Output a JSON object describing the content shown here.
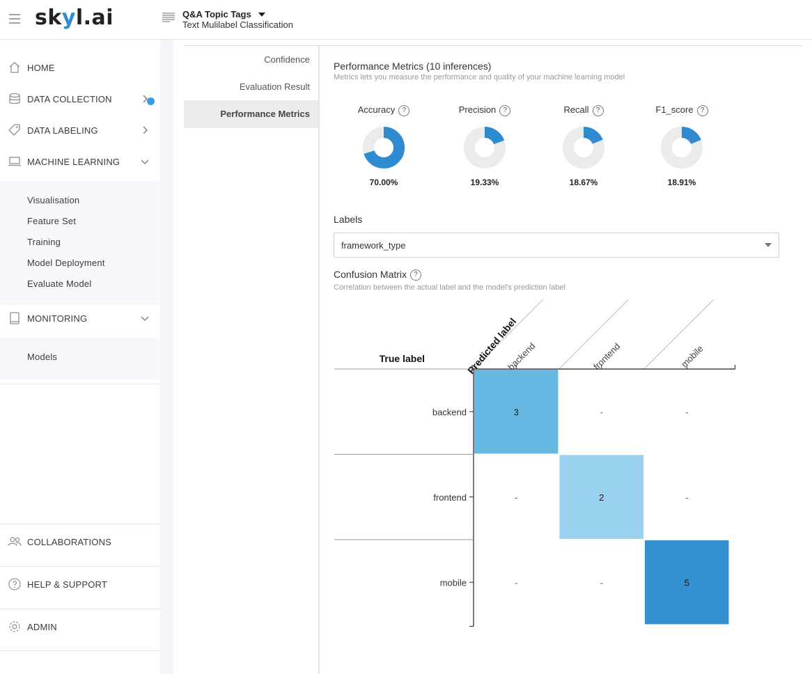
{
  "app": {
    "logo": {
      "pre": "sk",
      "y": "y",
      "post": "l.ai"
    },
    "project_title": "Q&A Topic Tags",
    "project_subtitle": "Text Mulilabel Classification"
  },
  "sidebar": {
    "items": [
      {
        "label": "HOME",
        "icon": "home-icon"
      },
      {
        "label": "DATA COLLECTION",
        "icon": "database-icon"
      },
      {
        "label": "DATA LABELING",
        "icon": "tag-icon"
      },
      {
        "label": "MACHINE LEARNING",
        "icon": "laptop-icon"
      },
      {
        "label": "MONITORING",
        "icon": "tablet-icon"
      }
    ],
    "ml_subitems": [
      "Visualisation",
      "Feature Set",
      "Training",
      "Model Deployment",
      "Evaluate Model"
    ],
    "monitoring_subitems": [
      "Models"
    ],
    "bottom_items": [
      {
        "label": "COLLABORATIONS",
        "icon": "users-icon"
      },
      {
        "label": "HELP & SUPPORT",
        "icon": "help-icon"
      },
      {
        "label": "ADMIN",
        "icon": "gear-icon"
      }
    ]
  },
  "left_menu": {
    "items": [
      "Confidence",
      "Evaluation Result",
      "Performance Metrics"
    ],
    "active": "Performance Metrics"
  },
  "performance": {
    "title": "Performance Metrics (10 inferences)",
    "subtitle": "Metrics lets you measure the performance and quality of your machine learning model",
    "metrics": [
      {
        "name": "Accuracy",
        "value_text": "70.00%",
        "fraction": 0.7
      },
      {
        "name": "Precision",
        "value_text": "19.33%",
        "fraction": 0.1933
      },
      {
        "name": "Recall",
        "value_text": "18.67%",
        "fraction": 0.1867
      },
      {
        "name": "F1_score",
        "value_text": "18.91%",
        "fraction": 0.1891
      }
    ],
    "colors": {
      "accent": "#2e8bd0",
      "track": "#ebebeb"
    }
  },
  "labels": {
    "heading": "Labels",
    "selected": "framework_type"
  },
  "confusion": {
    "title": "Confusion Matrix",
    "subtitle": "Correlation between the actual label and the model's prediction label",
    "predicted_axis": "Predicted label",
    "true_axis": "True label",
    "classes": [
      "backend",
      "frontend",
      "mobile"
    ],
    "matrix": [
      [
        "3",
        "-",
        "-"
      ],
      [
        "-",
        "2",
        "-"
      ],
      [
        "-",
        "-",
        "5"
      ]
    ],
    "cell_colors": [
      "#66b9e2",
      "#9ad1ee",
      "#3490d0"
    ]
  }
}
